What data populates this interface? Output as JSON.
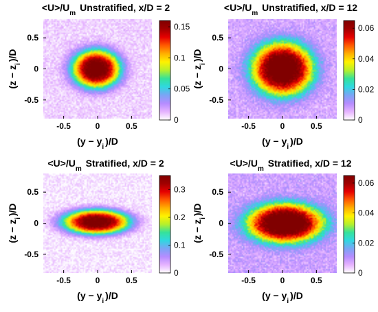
{
  "figure": {
    "xlabel": "(y − y",
    "xlabel_sub": "i",
    "xlabel_tail": ")/D",
    "ylabel": "(z − z",
    "ylabel_sub": "i",
    "ylabel_tail": ")/D"
  },
  "colormap": [
    "#ffffff",
    "#e6b3ff",
    "#b58cff",
    "#7aa5f5",
    "#2fd8e0",
    "#35e29a",
    "#b6f02c",
    "#fff200",
    "#ffb000",
    "#ff5a00",
    "#e60000",
    "#a10000",
    "#800000"
  ],
  "chart_data": [
    {
      "type": "heatmap",
      "title_pre": "<U>/U",
      "title_sub": "m",
      "title_post": "Unstratified, x/D = 2",
      "x_ticks": [
        "-0.5",
        "0",
        "0.5"
      ],
      "x_tick_values": [
        -0.5,
        0,
        0.5
      ],
      "y_ticks": [
        "0.5",
        "0",
        "-0.5"
      ],
      "y_tick_values": [
        0.5,
        0,
        -0.5
      ],
      "xlim": [
        -0.8,
        0.8
      ],
      "ylim": [
        -0.8,
        0.8
      ],
      "colorbar_ticks": [
        "0.15",
        "0.1",
        "0.05",
        "0"
      ],
      "colorbar_tick_values": [
        0.15,
        0.1,
        0.05,
        0
      ],
      "colorbar_range": [
        0,
        0.16
      ],
      "field": {
        "center_y": -0.02,
        "center_z": 0.0,
        "sigma_y": 0.29,
        "sigma_z": 0.25,
        "peak": 0.16,
        "background": 0.008
      }
    },
    {
      "type": "heatmap",
      "title_pre": "<U>/U",
      "title_sub": "m",
      "title_post": "Unstratified, x/D = 12",
      "x_ticks": [
        "-0.5",
        "0",
        "0.5"
      ],
      "x_tick_values": [
        -0.5,
        0,
        0.5
      ],
      "y_ticks": [
        "0.5",
        "0",
        "-0.5"
      ],
      "y_tick_values": [
        0.5,
        0,
        -0.5
      ],
      "xlim": [
        -0.8,
        0.8
      ],
      "ylim": [
        -0.8,
        0.8
      ],
      "colorbar_ticks": [
        "0.06",
        "0.04",
        "0.02",
        "0"
      ],
      "colorbar_tick_values": [
        0.06,
        0.04,
        0.02,
        0
      ],
      "colorbar_range": [
        0,
        0.065
      ],
      "field": {
        "center_y": 0.0,
        "center_z": 0.0,
        "sigma_y": 0.37,
        "sigma_z": 0.35,
        "peak": 0.065,
        "background": 0.007
      }
    },
    {
      "type": "heatmap",
      "title_pre": "<U>/U",
      "title_sub": "m",
      "title_post": "Stratified, x/D = 2",
      "x_ticks": [
        "-0.5",
        "0",
        "0.5"
      ],
      "x_tick_values": [
        -0.5,
        0,
        0.5
      ],
      "y_ticks": [
        "0.5",
        "0",
        "-0.5"
      ],
      "y_tick_values": [
        0.5,
        0,
        -0.5
      ],
      "xlim": [
        -0.8,
        0.8
      ],
      "ylim": [
        -0.8,
        0.8
      ],
      "colorbar_ticks": [
        "0.3",
        "0.2",
        "0.1",
        "0"
      ],
      "colorbar_tick_values": [
        0.3,
        0.2,
        0.1,
        0
      ],
      "colorbar_range": [
        0,
        0.35
      ],
      "field": {
        "center_y": -0.02,
        "center_z": 0.02,
        "sigma_y": 0.4,
        "sigma_z": 0.16,
        "peak": 0.35,
        "background": 0.01
      }
    },
    {
      "type": "heatmap",
      "title_pre": "<U>/U",
      "title_sub": "m",
      "title_post": "Stratified, x/D = 12",
      "x_ticks": [
        "-0.5",
        "0",
        "0.5"
      ],
      "x_tick_values": [
        -0.5,
        0,
        0.5
      ],
      "y_ticks": [
        "0.5",
        "0",
        "-0.5"
      ],
      "y_tick_values": [
        0.5,
        0,
        -0.5
      ],
      "xlim": [
        -0.8,
        0.8
      ],
      "ylim": [
        -0.8,
        0.8
      ],
      "colorbar_ticks": [
        "0.06",
        "0.04",
        "0.02",
        "0"
      ],
      "colorbar_tick_values": [
        0.06,
        0.04,
        0.02,
        0
      ],
      "colorbar_range": [
        0,
        0.065
      ],
      "field": {
        "center_y": 0.04,
        "center_z": 0.0,
        "sigma_y": 0.46,
        "sigma_z": 0.26,
        "peak": 0.065,
        "background": 0.008
      }
    }
  ]
}
